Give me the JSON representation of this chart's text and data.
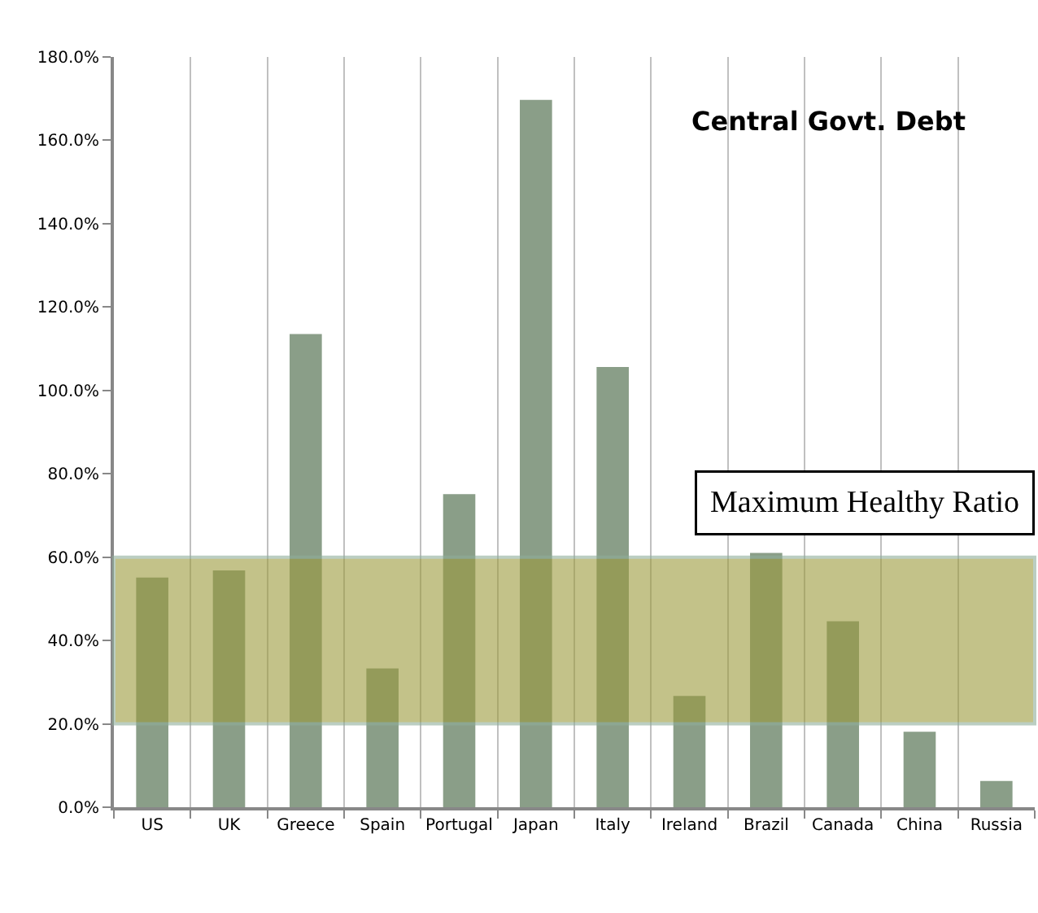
{
  "chart_data": {
    "type": "bar",
    "title": "Central Govt. Debt",
    "categories": [
      "US",
      "UK",
      "Greece",
      "Spain",
      "Portugal",
      "Japan",
      "Italy",
      "Ireland",
      "Brazil",
      "Canada",
      "China",
      "Russia"
    ],
    "values": [
      55.1,
      56.8,
      113.5,
      33.3,
      75.1,
      169.7,
      105.6,
      26.7,
      61,
      44.6,
      18.1,
      6.3
    ],
    "color": "#8a9e88",
    "ylim": [
      0,
      180
    ],
    "yticks": [
      {
        "value": 0,
        "label": "0.0%"
      },
      {
        "value": 20,
        "label": "20.0%"
      },
      {
        "value": 40,
        "label": "40.0%"
      },
      {
        "value": 60,
        "label": "60.0%"
      },
      {
        "value": 80,
        "label": "80.0%"
      },
      {
        "value": 100,
        "label": "100.0%"
      },
      {
        "value": 120,
        "label": "120.0%"
      },
      {
        "value": 140,
        "label": "140.0%"
      },
      {
        "value": 160,
        "label": "160.0%"
      },
      {
        "value": 180,
        "label": "180.0%"
      }
    ],
    "bands": [
      {
        "axis": "y",
        "from": 20,
        "to": 60,
        "label": "Maximum Healthy Ratio",
        "color": "#9c9a3c"
      }
    ],
    "grid": "x"
  }
}
